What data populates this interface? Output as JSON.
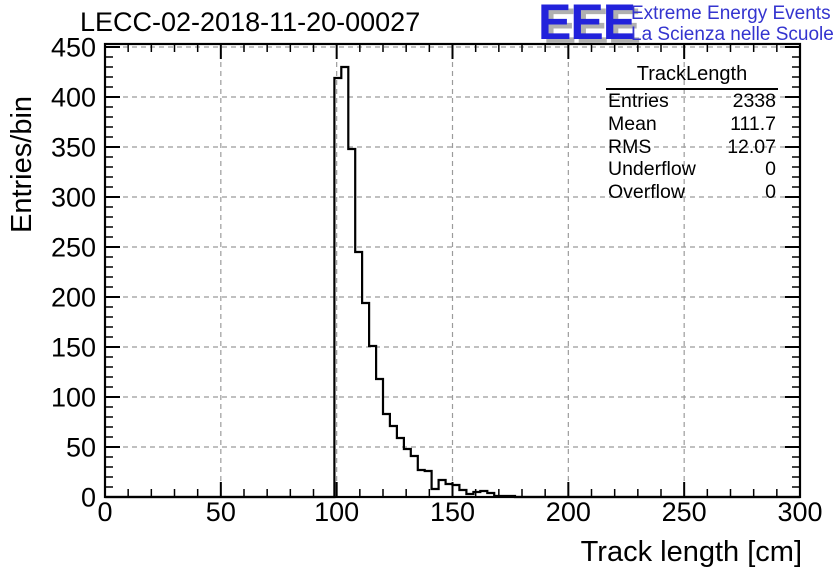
{
  "title": "LECC-02-2018-11-20-00027",
  "logo": {
    "text": "EEE",
    "line1": "Extreme Energy Events",
    "line2": "La Scienza nelle Scuole",
    "text_color": "#2222DB",
    "shadow_color": "#B0B0B0",
    "subtitle_color": "#3434CF"
  },
  "stats": {
    "header": "TrackLength",
    "rows": [
      {
        "label": "Entries",
        "value": "2338"
      },
      {
        "label": "Mean",
        "value": "111.7"
      },
      {
        "label": "RMS",
        "value": "12.07"
      },
      {
        "label": "Underflow",
        "value": "0"
      },
      {
        "label": "Overflow",
        "value": "0"
      }
    ]
  },
  "chart_data": {
    "type": "bar",
    "style": "step-outline-histogram",
    "title": "LECC-02-2018-11-20-00027",
    "xlabel": "Track length [cm]",
    "ylabel": "Entries/bin",
    "xlim": [
      0,
      300
    ],
    "ylim": [
      0,
      450
    ],
    "y_headroom_value": 453,
    "bin_width": 3,
    "first_bin_edge": 99,
    "counts": [
      419,
      430,
      348,
      245,
      194,
      151,
      118,
      83,
      71,
      59,
      48,
      41,
      27,
      26,
      8,
      17,
      13,
      12,
      7,
      3,
      5,
      6,
      4,
      1,
      1,
      1
    ],
    "note": "all bins outside [99,177] have 0 entries",
    "x_major_ticks": [
      0,
      50,
      100,
      150,
      200,
      250,
      300
    ],
    "x_tick_labels": [
      "0",
      "50",
      "100",
      "150",
      "200",
      "250",
      "300"
    ],
    "y_major_ticks": [
      0,
      50,
      100,
      150,
      200,
      250,
      300,
      350,
      400,
      450
    ],
    "y_tick_labels": [
      "0",
      "50",
      "100",
      "150",
      "200",
      "250",
      "300",
      "350",
      "400",
      "450"
    ],
    "minor_tick_step": 10,
    "grid": "dashed-major-both-axes",
    "grid_color": "#9B9B9B",
    "line_color": "#000000",
    "legend_position": "none"
  }
}
